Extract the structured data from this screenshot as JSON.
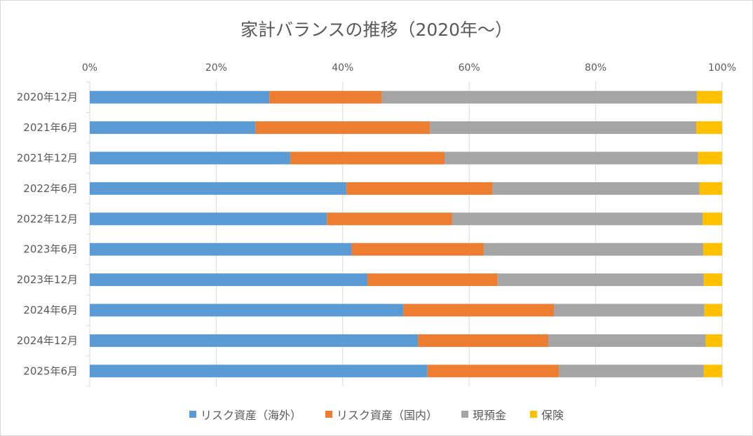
{
  "chart_data": {
    "type": "bar",
    "orientation": "horizontal",
    "stacked": "percent",
    "title": "家計バランスの推移（2020年～）",
    "xlim": [
      0,
      100
    ],
    "xticks": [
      0,
      20,
      40,
      60,
      80,
      100
    ],
    "xtick_labels": [
      "0%",
      "20%",
      "40%",
      "60%",
      "80%",
      "100%"
    ],
    "grid": "vertical",
    "legend_position": "bottom",
    "categories": [
      "2020年12月",
      "2021年6月",
      "2021年12月",
      "2022年6月",
      "2022年12月",
      "2023年6月",
      "2023年12月",
      "2024年6月",
      "2024年12月",
      "2025年6月"
    ],
    "series": [
      {
        "name": "リスク資産（海外）",
        "color": "#5b9bd5",
        "values": [
          28.4,
          26.2,
          31.7,
          40.6,
          37.5,
          41.4,
          43.9,
          49.6,
          51.9,
          53.4
        ]
      },
      {
        "name": "リスク資産（国内）",
        "color": "#ed7d31",
        "values": [
          17.8,
          27.6,
          24.4,
          23.1,
          19.8,
          20.9,
          20.6,
          23.8,
          20.6,
          20.8
        ]
      },
      {
        "name": "現預金",
        "color": "#a5a5a5",
        "values": [
          49.8,
          42.1,
          40.1,
          32.7,
          39.6,
          34.7,
          32.6,
          23.8,
          24.9,
          22.9
        ]
      },
      {
        "name": "保険",
        "color": "#ffc000",
        "values": [
          4.0,
          4.1,
          3.8,
          3.6,
          3.1,
          3.0,
          2.9,
          2.8,
          2.6,
          2.9
        ]
      }
    ]
  }
}
